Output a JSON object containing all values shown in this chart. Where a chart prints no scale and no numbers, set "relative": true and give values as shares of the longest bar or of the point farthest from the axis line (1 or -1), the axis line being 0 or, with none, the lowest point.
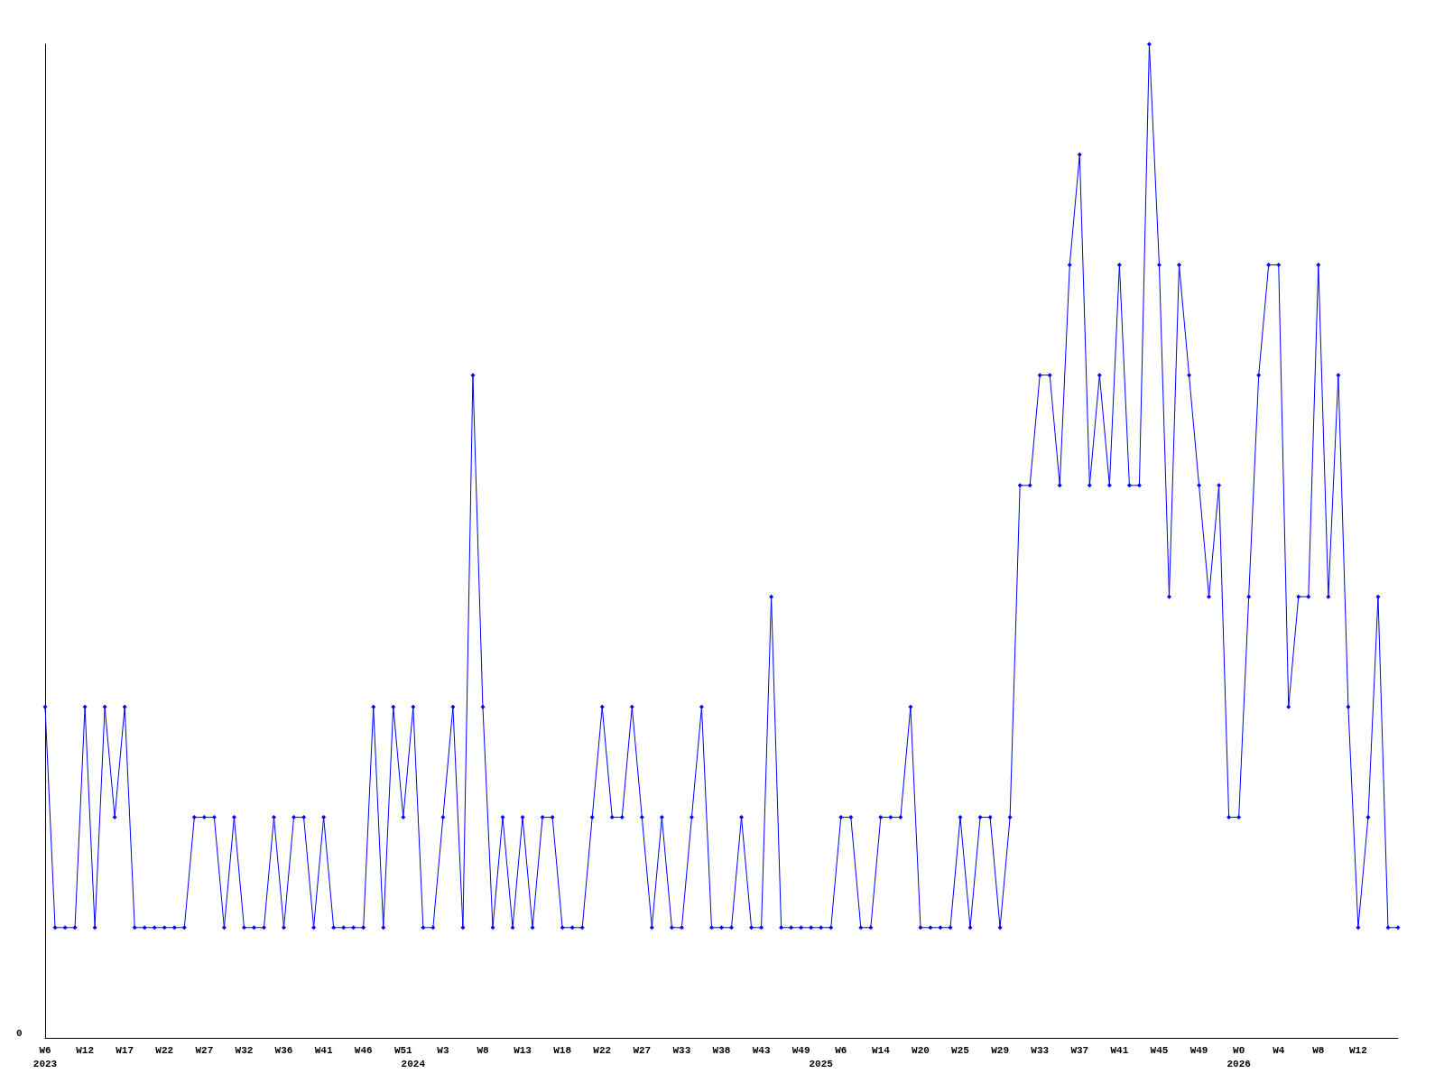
{
  "chart_data": {
    "type": "line",
    "relative": true,
    "annotations": [
      "0"
    ],
    "marker": "diamond",
    "grid": false,
    "categories": [
      "W6\n2023",
      null,
      null,
      null,
      "W12",
      null,
      null,
      null,
      "W17",
      null,
      null,
      null,
      "W22",
      null,
      null,
      null,
      "W27",
      null,
      null,
      null,
      "W32",
      null,
      null,
      null,
      "W36",
      null,
      null,
      null,
      "W41",
      null,
      null,
      null,
      "W46",
      null,
      null,
      null,
      "W51",
      "\n2024",
      null,
      null,
      "W3",
      null,
      null,
      null,
      "W8",
      null,
      null,
      null,
      "W13",
      null,
      null,
      null,
      "W18",
      null,
      null,
      null,
      "W22",
      null,
      null,
      null,
      "W27",
      null,
      null,
      null,
      "W33",
      null,
      null,
      null,
      "W38",
      null,
      null,
      null,
      "W43",
      null,
      null,
      null,
      "W49",
      null,
      "\n2025",
      null,
      "W6",
      null,
      null,
      null,
      "W14",
      null,
      null,
      null,
      "W20",
      null,
      null,
      null,
      "W25",
      null,
      null,
      null,
      "W29",
      null,
      null,
      null,
      "W33",
      null,
      null,
      null,
      "W37",
      null,
      null,
      null,
      "W41",
      null,
      null,
      null,
      "W45",
      null,
      null,
      null,
      "W49",
      null,
      null,
      null,
      "W0\n2026",
      null,
      null,
      null,
      "W4",
      null,
      null,
      null,
      "W8",
      null,
      null,
      null,
      "W12",
      null,
      null,
      null,
      null
    ],
    "series": [
      {
        "color": "#0000ff",
        "values": [
          0.333,
          0.111,
          0.111,
          0.111,
          0.333,
          0.111,
          0.333,
          0.222,
          0.333,
          0.111,
          0.111,
          0.111,
          0.111,
          0.111,
          0.111,
          0.222,
          0.222,
          0.222,
          0.111,
          0.222,
          0.111,
          0.111,
          0.111,
          0.222,
          0.111,
          0.222,
          0.222,
          0.111,
          0.222,
          0.111,
          0.111,
          0.111,
          0.111,
          0.333,
          0.111,
          0.333,
          0.222,
          0.333,
          0.111,
          0.111,
          0.222,
          0.333,
          0.111,
          0.667,
          0.333,
          0.111,
          0.222,
          0.111,
          0.222,
          0.111,
          0.222,
          0.222,
          0.111,
          0.111,
          0.111,
          0.222,
          0.333,
          0.222,
          0.222,
          0.333,
          0.222,
          0.111,
          0.222,
          0.111,
          0.111,
          0.222,
          0.333,
          0.111,
          0.111,
          0.111,
          0.222,
          0.111,
          0.111,
          0.444,
          0.111,
          0.111,
          0.111,
          0.111,
          0.111,
          0.111,
          0.222,
          0.222,
          0.111,
          0.111,
          0.222,
          0.222,
          0.222,
          0.333,
          0.111,
          0.111,
          0.111,
          0.111,
          0.222,
          0.111,
          0.222,
          0.222,
          0.111,
          0.222,
          0.556,
          0.556,
          0.667,
          0.667,
          0.556,
          0.778,
          0.889,
          0.556,
          0.667,
          0.556,
          0.778,
          0.556,
          0.556,
          1,
          0.778,
          0.444,
          0.778,
          0.667,
          0.556,
          0.444,
          0.556,
          0.222,
          0.222,
          0.444,
          0.667,
          0.778,
          0.778,
          0.333,
          0.444,
          0.444,
          0.778,
          0.444,
          0.667,
          0.333,
          0.111,
          0.222,
          0.444,
          0.111,
          0.111
        ]
      }
    ]
  }
}
